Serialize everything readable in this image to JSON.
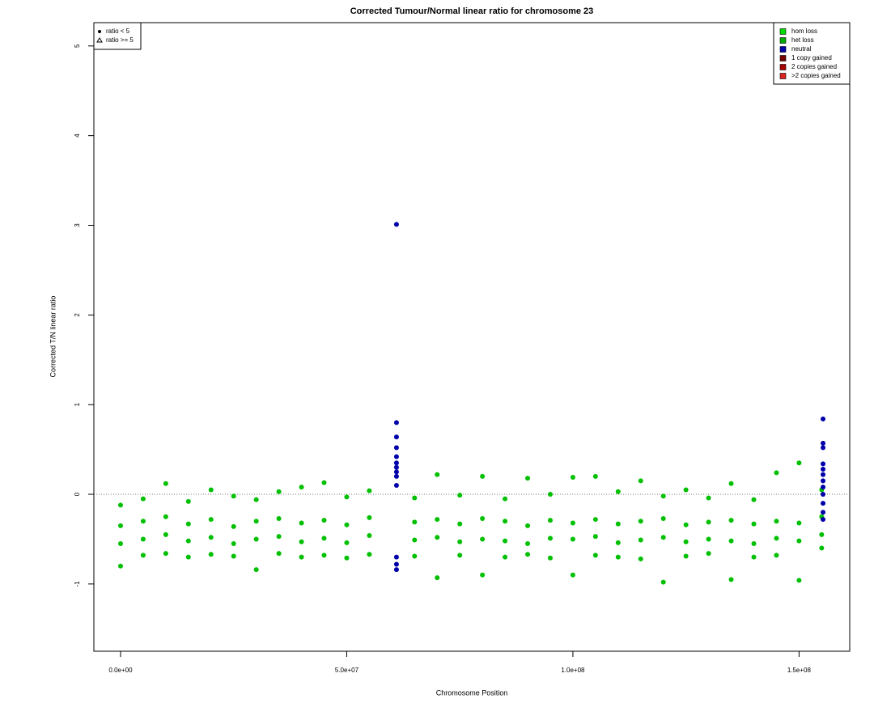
{
  "chart_data": {
    "type": "scatter",
    "title": "Corrected Tumour/Normal linear ratio for chromosome  23",
    "x_label": "Chromosome Position",
    "y_label": "Corrected T/N linear ratio",
    "xlim": [
      -5900000,
      161200000
    ],
    "ylim": [
      -1.75,
      5.26
    ],
    "xticks": [
      {
        "value": 0,
        "label": "0.0e+00"
      },
      {
        "value": 50000000,
        "label": "5.0e+07"
      },
      {
        "value": 100000000,
        "label": "1.0e+08"
      },
      {
        "value": 150000000,
        "label": "1.5e+08"
      }
    ],
    "yticks": [
      -1,
      0,
      1,
      2,
      3,
      4,
      5
    ],
    "reference_line": 0,
    "shape_legend": [
      {
        "label": "ratio < 5",
        "marker": "circle"
      },
      {
        "label": "ratio >= 5",
        "marker": "triangle"
      }
    ],
    "color_legend": [
      {
        "label": "hom loss",
        "color": "#00dd00"
      },
      {
        "label": "het loss",
        "color": "#00aa00"
      },
      {
        "label": "neutral",
        "color": "#0000aa"
      },
      {
        "label": "1 copy gained",
        "color": "#770000"
      },
      {
        "label": "2 copies gained",
        "color": "#aa0000"
      },
      {
        "label": ">2 copies gained",
        "color": "#dd2222"
      }
    ],
    "series": [
      {
        "color": "#00c000",
        "x": [
          0,
          0,
          0,
          0,
          5000000,
          5000000,
          5000000,
          5000000,
          10000000,
          10000000,
          10000000,
          10000000,
          15000000,
          15000000,
          15000000,
          15000000,
          20000000,
          20000000,
          20000000,
          20000000,
          25000000,
          25000000,
          25000000,
          25000000,
          30000000,
          30000000,
          30000000,
          30000000,
          35000000,
          35000000,
          35000000,
          35000000,
          40000000,
          40000000,
          40000000,
          40000000,
          45000000,
          45000000,
          45000000,
          45000000,
          50000000,
          50000000,
          50000000,
          50000000,
          55000000,
          55000000,
          55000000,
          55000000,
          65000000,
          65000000,
          65000000,
          65000000,
          70000000,
          70000000,
          70000000,
          70000000,
          75000000,
          75000000,
          75000000,
          75000000,
          80000000,
          80000000,
          80000000,
          80000000,
          85000000,
          85000000,
          85000000,
          85000000,
          90000000,
          90000000,
          90000000,
          90000000,
          95000000,
          95000000,
          95000000,
          95000000,
          100000000,
          100000000,
          100000000,
          100000000,
          105000000,
          105000000,
          105000000,
          105000000,
          110000000,
          110000000,
          110000000,
          110000000,
          115000000,
          115000000,
          115000000,
          115000000,
          120000000,
          120000000,
          120000000,
          120000000,
          125000000,
          125000000,
          125000000,
          125000000,
          130000000,
          130000000,
          130000000,
          130000000,
          135000000,
          135000000,
          135000000,
          135000000,
          140000000,
          140000000,
          140000000,
          140000000,
          145000000,
          145000000,
          145000000,
          145000000,
          150000000,
          150000000,
          150000000,
          150000000,
          155000000,
          155000000,
          155000000,
          155000000
        ],
        "values": [
          -0.12,
          -0.35,
          -0.55,
          -0.8,
          -0.05,
          -0.3,
          -0.5,
          -0.68,
          0.12,
          -0.25,
          -0.45,
          -0.66,
          -0.08,
          -0.33,
          -0.52,
          -0.7,
          0.05,
          -0.28,
          -0.48,
          -0.67,
          -0.02,
          -0.36,
          -0.55,
          -0.69,
          -0.06,
          -0.3,
          -0.5,
          -0.84,
          0.03,
          -0.27,
          -0.47,
          -0.66,
          0.08,
          -0.32,
          -0.53,
          -0.7,
          0.13,
          -0.29,
          -0.49,
          -0.68,
          -0.03,
          -0.34,
          -0.54,
          -0.71,
          0.04,
          -0.26,
          -0.46,
          -0.67,
          -0.04,
          -0.31,
          -0.51,
          -0.69,
          0.22,
          -0.28,
          -0.48,
          -0.93,
          -0.01,
          -0.33,
          -0.53,
          -0.68,
          0.2,
          -0.27,
          -0.5,
          -0.9,
          -0.05,
          -0.3,
          -0.52,
          -0.7,
          0.18,
          -0.35,
          -0.55,
          -0.67,
          0,
          -0.29,
          -0.49,
          -0.71,
          0.19,
          -0.32,
          -0.5,
          -0.9,
          0.2,
          -0.28,
          -0.47,
          -0.68,
          0.03,
          -0.33,
          -0.54,
          -0.7,
          0.15,
          -0.3,
          -0.51,
          -0.72,
          -0.02,
          -0.27,
          -0.48,
          -0.98,
          0.05,
          -0.34,
          -0.53,
          -0.69,
          -0.04,
          -0.31,
          -0.5,
          -0.66,
          0.12,
          -0.29,
          -0.52,
          -0.95,
          -0.06,
          -0.33,
          -0.55,
          -0.7,
          0.24,
          -0.3,
          -0.49,
          -0.68,
          0.35,
          -0.32,
          -0.52,
          -0.96,
          0.05,
          -0.25,
          -0.45,
          -0.6
        ]
      },
      {
        "color": "#0000aa",
        "x": [
          61000000,
          61000000,
          61000000,
          61000000,
          61000000,
          61000000,
          61000000,
          61000000,
          61000000,
          61000000,
          61000000,
          61000000,
          61000000,
          155300000,
          155300000,
          155300000,
          155300000,
          155300000,
          155300000,
          155300000,
          155300000,
          155300000,
          155300000,
          155300000,
          155300000
        ],
        "values": [
          3.01,
          0.8,
          0.64,
          0.52,
          0.42,
          0.35,
          0.3,
          0.25,
          0.2,
          0.1,
          -0.7,
          -0.78,
          -0.84,
          0.84,
          0.57,
          0.52,
          0.34,
          0.28,
          0.22,
          0.15,
          0.08,
          0,
          -0.1,
          -0.2,
          -0.28
        ]
      }
    ]
  }
}
